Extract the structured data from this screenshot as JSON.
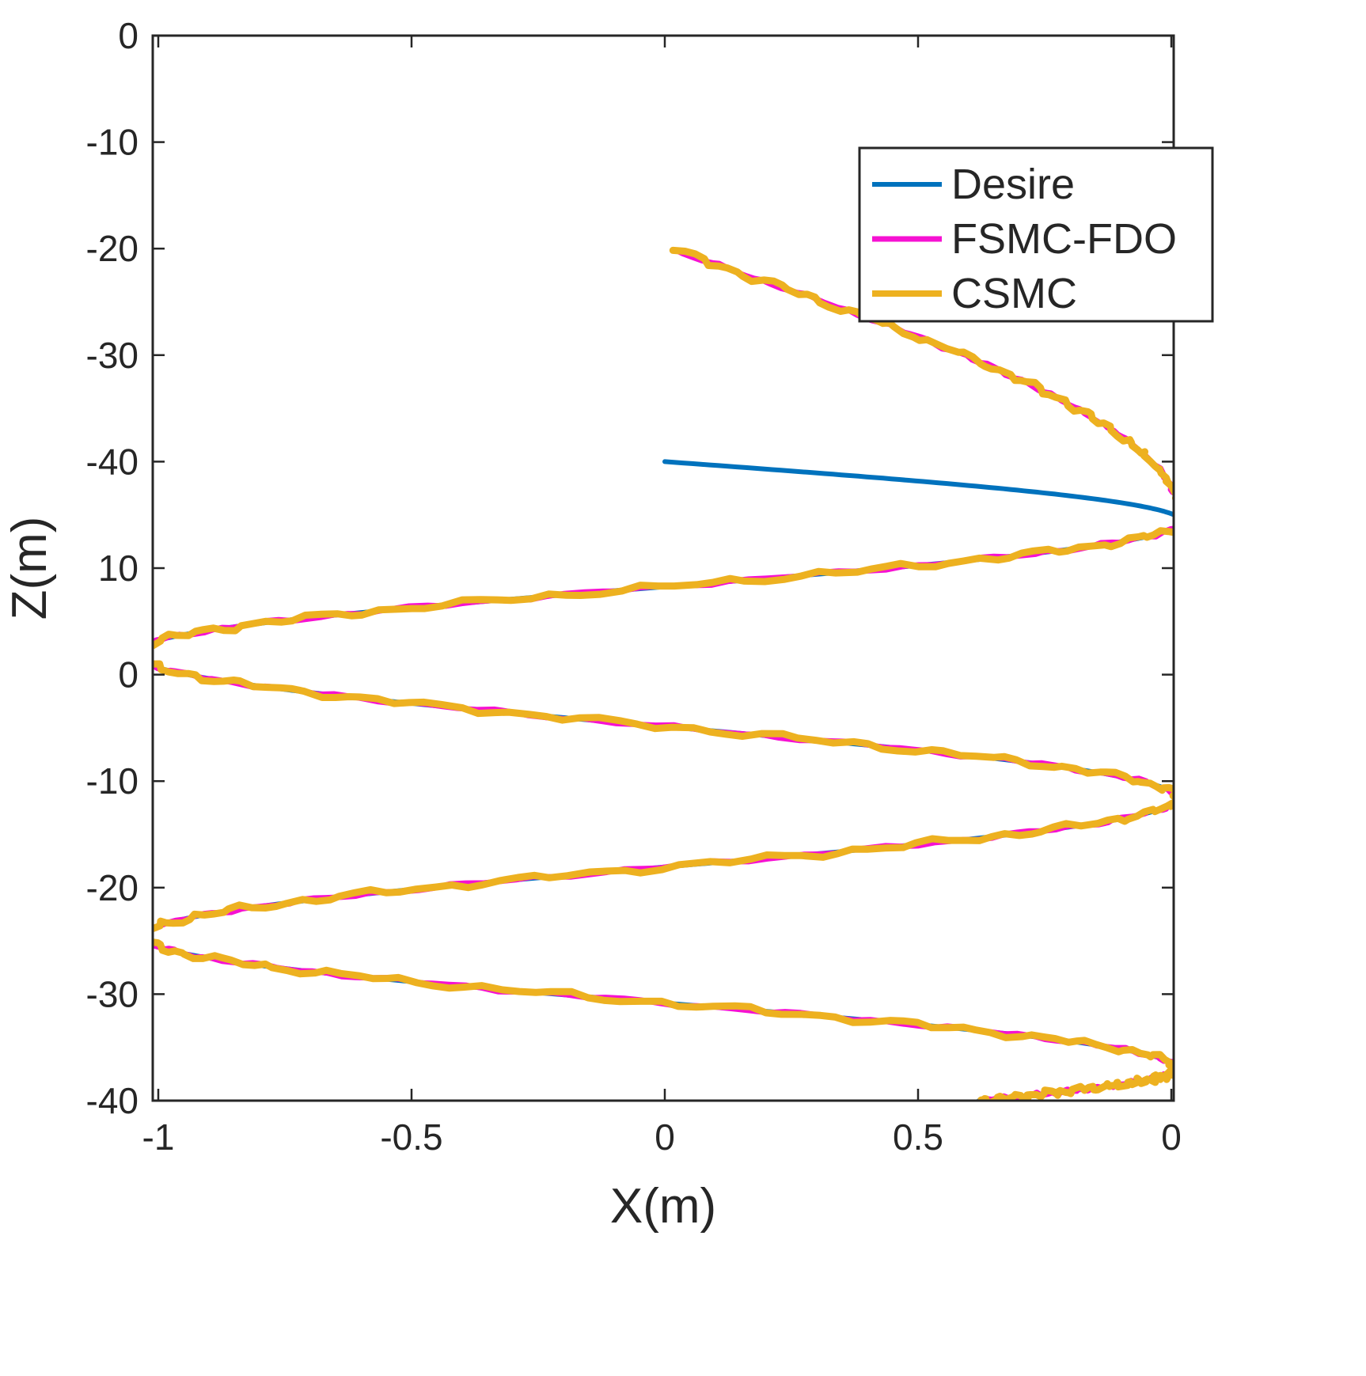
{
  "chart_data": {
    "type": "line",
    "title": "",
    "xlabel": "X(m)",
    "ylabel": "Z(m)",
    "x_ticks": [
      "-1",
      "-0.5",
      "0",
      "0.5",
      "0"
    ],
    "y_ticks": [
      "0",
      "-10",
      "-20",
      "-30",
      "-40",
      "10",
      "0",
      "-10",
      "-20",
      "-30",
      "-40"
    ],
    "grid": "off",
    "legend_position": "northeast",
    "row_definition": "waypoint 'row' = y-axis tick index (0 = top '0' tick, 10 = bottom '-40' tick); x in meters per x-axis",
    "series": [
      {
        "name": "Desire",
        "color": "#0072BD",
        "width": 6,
        "noise_amp": 0,
        "seed": 1.0,
        "eases": [
          "in",
          "inout",
          "inout",
          "inout",
          "inout",
          "out"
        ],
        "waypoints": [
          [
            0.0,
            4.0
          ],
          [
            1.02,
            4.56
          ],
          [
            -1.05,
            5.8
          ],
          [
            1.01,
            7.16
          ],
          [
            -1.03,
            8.46
          ],
          [
            1.01,
            9.7
          ],
          [
            0.62,
            10.0
          ]
        ]
      },
      {
        "name": "FSMC-FDO",
        "color": "#F611D2",
        "width": 7,
        "noise_amp": 3,
        "seed": 2.1,
        "eases": [
          "in",
          "inout",
          "inout",
          "inout",
          "inout",
          "out"
        ],
        "waypoints": [
          [
            0.02,
            2.02
          ],
          [
            1.02,
            4.56
          ],
          [
            -1.05,
            5.8
          ],
          [
            1.01,
            7.16
          ],
          [
            -1.03,
            8.46
          ],
          [
            1.01,
            9.7
          ],
          [
            0.62,
            10.0
          ]
        ]
      },
      {
        "name": "CSMC",
        "color": "#EDB120",
        "width": 9,
        "noise_amp": 5.5,
        "seed": 4.7,
        "eases": [
          "in",
          "inout",
          "inout",
          "inout",
          "inout",
          "out"
        ],
        "waypoints": [
          [
            0.02,
            2.02
          ],
          [
            1.02,
            4.56
          ],
          [
            -1.05,
            5.8
          ],
          [
            1.01,
            7.16
          ],
          [
            -1.03,
            8.46
          ],
          [
            1.01,
            9.7
          ],
          [
            0.62,
            10.0
          ]
        ]
      }
    ]
  }
}
